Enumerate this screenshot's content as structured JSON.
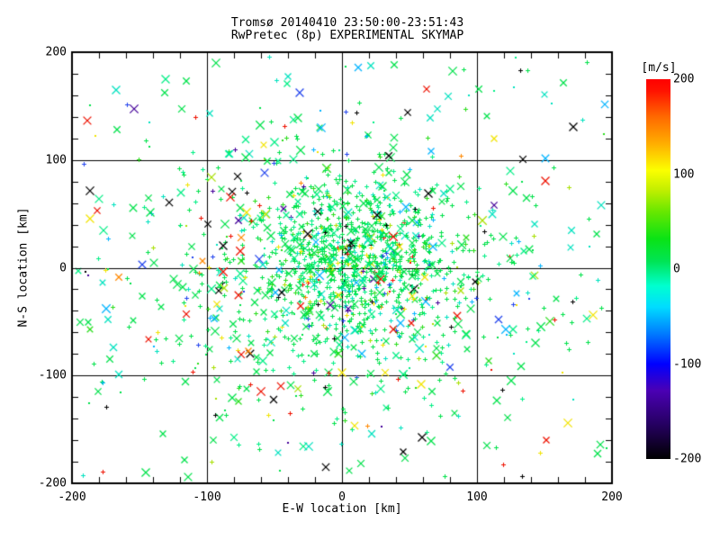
{
  "chart_data": {
    "type": "scatter",
    "title_line1": "Tromsø 20140410 23:50:00-23:51:43",
    "title_line2": "RwPretec (8p) EXPERIMENTAL SKYMAP",
    "xlabel": "E-W location [km]",
    "ylabel": "N-S location [km]",
    "xlim": [
      -200,
      200
    ],
    "ylim": [
      -200,
      200
    ],
    "xticks": [
      -200,
      -100,
      0,
      100,
      200
    ],
    "yticks": [
      -200,
      -100,
      0,
      100,
      200
    ],
    "minor_step": 20,
    "gridlines_x": [
      -100,
      0,
      100
    ],
    "gridlines_y": [
      -100,
      0,
      100
    ],
    "grid": "on",
    "frame_color": "#000000",
    "background": "#ffffff",
    "colorbar": {
      "label": "[m/s]",
      "min": -200,
      "max": 200,
      "ticks": [
        200,
        100,
        0,
        -100,
        -200
      ],
      "gradient_stops": [
        [
          0,
          "#000000"
        ],
        [
          0.09,
          "#250060"
        ],
        [
          0.18,
          "#4b00b4"
        ],
        [
          0.25,
          "#0000ff"
        ],
        [
          0.33,
          "#007bff"
        ],
        [
          0.4,
          "#00dcff"
        ],
        [
          0.455,
          "#00ffd0"
        ],
        [
          0.52,
          "#00e455"
        ],
        [
          0.58,
          "#0ae315"
        ],
        [
          0.65,
          "#66e700"
        ],
        [
          0.71,
          "#c4ef00"
        ],
        [
          0.76,
          "#fbff00"
        ],
        [
          0.83,
          "#ffae00"
        ],
        [
          0.9,
          "#ff6a00"
        ],
        [
          0.97,
          "#ff1200"
        ],
        [
          1,
          "#ff0000"
        ]
      ]
    },
    "points_generator": {
      "comment": "Statistical recreation of ~1700 meteor-echo points: dense near-zero-velocity (green) Gaussian core plus sparse colored outliers",
      "seed": 1337,
      "clusters": [
        {
          "count": 500,
          "kind": "gaussian",
          "cx": 12,
          "cy": 16,
          "sx": 30,
          "sy": 30,
          "markers": [
            [
              "plus",
              0.93
            ],
            [
              "cross",
              0.05
            ],
            [
              "dot",
              0.02
            ]
          ],
          "palette": "core"
        },
        {
          "count": 560,
          "kind": "gaussian",
          "cx": 4,
          "cy": -14,
          "sx": 55,
          "sy": 50,
          "markers": [
            [
              "plus",
              0.8
            ],
            [
              "cross",
              0.16
            ],
            [
              "dot",
              0.04
            ]
          ],
          "palette": "core"
        },
        {
          "count": 400,
          "kind": "gaussian",
          "cx": 0,
          "cy": 0,
          "sx": 95,
          "sy": 88,
          "markers": [
            [
              "plus",
              0.52
            ],
            [
              "cross",
              0.38
            ],
            [
              "dot",
              0.1
            ]
          ],
          "palette": "mid"
        },
        {
          "count": 240,
          "kind": "uniform",
          "markers": [
            [
              "cross",
              0.58
            ],
            [
              "plus",
              0.22
            ],
            [
              "dot",
              0.2
            ]
          ],
          "palette": "outer"
        }
      ],
      "palettes": {
        "core": [
          [
            "#00e24a",
            0.54
          ],
          [
            "#00ef85",
            0.17
          ],
          [
            "#2ade1c",
            0.08
          ],
          [
            "#00e2c0",
            0.07
          ],
          [
            "#a8e000",
            0.03
          ],
          [
            "#f2e400",
            0.02
          ],
          [
            "#00b4ff",
            0.02
          ],
          [
            "#ff8800",
            0.01
          ],
          [
            "#ee1100",
            0.015
          ],
          [
            "#2244ee",
            0.015
          ],
          [
            "#000000",
            0.02
          ],
          [
            "#440099",
            0.01
          ]
        ],
        "mid": [
          [
            "#00e24a",
            0.46
          ],
          [
            "#00ef85",
            0.15
          ],
          [
            "#00e2c0",
            0.1
          ],
          [
            "#2ade1c",
            0.05
          ],
          [
            "#f2e400",
            0.04
          ],
          [
            "#00b4ff",
            0.04
          ],
          [
            "#ee1100",
            0.04
          ],
          [
            "#000000",
            0.04
          ],
          [
            "#a8e000",
            0.03
          ],
          [
            "#ff8800",
            0.015
          ],
          [
            "#2244ee",
            0.03
          ],
          [
            "#440099",
            0.005
          ]
        ],
        "outer": [
          [
            "#00e24a",
            0.36
          ],
          [
            "#00e2c0",
            0.13
          ],
          [
            "#00ef85",
            0.1
          ],
          [
            "#f2e400",
            0.08
          ],
          [
            "#ee1100",
            0.08
          ],
          [
            "#000000",
            0.09
          ],
          [
            "#00b4ff",
            0.05
          ],
          [
            "#2244ee",
            0.04
          ],
          [
            "#ff8800",
            0.02
          ],
          [
            "#a8e000",
            0.02
          ],
          [
            "#2ade1c",
            0.02
          ],
          [
            "#440099",
            0.01
          ]
        ]
      },
      "marker_sizes": {
        "plus": 5,
        "cross": 9,
        "dot": 2
      }
    }
  }
}
